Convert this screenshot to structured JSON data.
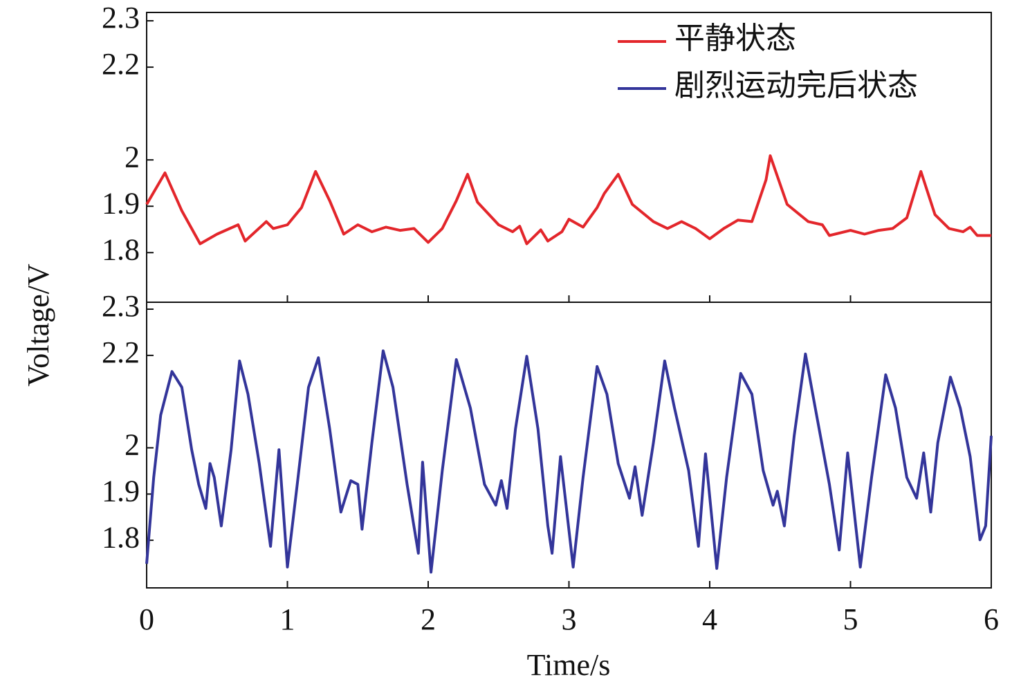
{
  "chart_data": [
    {
      "type": "line",
      "ylabel": "Voltage/V",
      "xlim": [
        0,
        6
      ],
      "xticks": [
        1,
        2,
        3,
        4,
        5
      ],
      "ylim": [
        1.693,
        2.318
      ],
      "yticks": [
        1.8,
        1.9,
        2.0,
        2.2,
        2.3
      ],
      "legend": "upper right",
      "x": [
        0,
        0.13,
        0.25,
        0.38,
        0.5,
        0.65,
        0.7,
        0.85,
        0.9,
        1.0,
        1.1,
        1.2,
        1.3,
        1.4,
        1.5,
        1.6,
        1.7,
        1.8,
        1.9,
        2.0,
        2.1,
        2.2,
        2.28,
        2.35,
        2.5,
        2.6,
        2.65,
        2.7,
        2.8,
        2.85,
        2.95,
        3.0,
        3.1,
        3.2,
        3.25,
        3.35,
        3.45,
        3.6,
        3.7,
        3.8,
        3.9,
        4.0,
        4.1,
        4.2,
        4.3,
        4.4,
        4.43,
        4.55,
        4.7,
        4.8,
        4.85,
        5.0,
        5.1,
        5.2,
        5.3,
        5.4,
        5.5,
        5.6,
        5.7,
        5.8,
        5.85,
        5.9,
        6.0
      ],
      "series": [
        {
          "name": "平静状态",
          "color": "#e3262b",
          "values": [
            1.904,
            1.972,
            1.89,
            1.819,
            1.84,
            1.86,
            1.825,
            1.867,
            1.852,
            1.86,
            1.897,
            1.975,
            1.912,
            1.84,
            1.86,
            1.845,
            1.855,
            1.848,
            1.852,
            1.822,
            1.852,
            1.912,
            1.969,
            1.909,
            1.86,
            1.845,
            1.857,
            1.819,
            1.849,
            1.825,
            1.845,
            1.872,
            1.855,
            1.897,
            1.927,
            1.969,
            1.904,
            1.867,
            1.852,
            1.867,
            1.852,
            1.83,
            1.852,
            1.87,
            1.867,
            1.957,
            2.009,
            1.904,
            1.867,
            1.86,
            1.837,
            1.848,
            1.84,
            1.848,
            1.852,
            1.875,
            1.975,
            1.882,
            1.852,
            1.845,
            1.855,
            1.837,
            1.837
          ]
        }
      ]
    },
    {
      "type": "line",
      "xlabel": "Time/s",
      "xlim": [
        0,
        6
      ],
      "xticks": [
        0,
        1,
        2,
        3,
        4,
        5,
        6
      ],
      "ylim": [
        1.697,
        2.315
      ],
      "yticks": [
        1.8,
        1.9,
        2.0,
        2.2,
        2.3
      ],
      "x": [
        0,
        0.05,
        0.1,
        0.18,
        0.25,
        0.32,
        0.37,
        0.42,
        0.45,
        0.48,
        0.53,
        0.6,
        0.66,
        0.72,
        0.8,
        0.88,
        0.94,
        1.0,
        1.07,
        1.15,
        1.22,
        1.3,
        1.38,
        1.45,
        1.5,
        1.53,
        1.6,
        1.68,
        1.75,
        1.85,
        1.93,
        1.96,
        2.02,
        2.1,
        2.2,
        2.3,
        2.4,
        2.48,
        2.52,
        2.56,
        2.62,
        2.7,
        2.78,
        2.85,
        2.88,
        2.94,
        3.03,
        3.1,
        3.2,
        3.27,
        3.35,
        3.43,
        3.47,
        3.52,
        3.6,
        3.68,
        3.75,
        3.85,
        3.92,
        3.97,
        4.05,
        4.12,
        4.22,
        4.3,
        4.38,
        4.45,
        4.48,
        4.53,
        4.6,
        4.68,
        4.75,
        4.85,
        4.92,
        4.98,
        5.07,
        5.15,
        5.25,
        5.32,
        5.4,
        5.47,
        5.52,
        5.57,
        5.62,
        5.71,
        5.78,
        5.85,
        5.92,
        5.96,
        6.0
      ],
      "series": [
        {
          "name": "剧烈运动完后状态",
          "color": "#33359a",
          "values": [
            1.749,
            1.936,
            2.071,
            2.165,
            2.131,
            1.996,
            1.921,
            1.869,
            1.966,
            1.936,
            1.831,
            1.996,
            2.188,
            2.116,
            1.966,
            1.787,
            1.996,
            1.742,
            1.921,
            2.131,
            2.195,
            2.041,
            1.861,
            1.929,
            1.921,
            1.824,
            2.011,
            2.21,
            2.131,
            1.921,
            1.772,
            1.969,
            1.731,
            1.951,
            2.191,
            2.086,
            1.921,
            1.876,
            1.929,
            1.869,
            2.041,
            2.198,
            2.041,
            1.831,
            1.772,
            1.981,
            1.742,
            1.936,
            2.176,
            2.116,
            1.966,
            1.891,
            1.959,
            1.854,
            2.011,
            2.188,
            2.086,
            1.951,
            1.787,
            1.987,
            1.739,
            1.936,
            2.161,
            2.116,
            1.951,
            1.876,
            1.906,
            1.831,
            2.026,
            2.203,
            2.086,
            1.921,
            1.779,
            1.989,
            1.742,
            1.936,
            2.158,
            2.086,
            1.936,
            1.891,
            1.989,
            1.861,
            2.011,
            2.153,
            2.086,
            1.981,
            1.801,
            1.831,
            2.026
          ]
        }
      ]
    }
  ]
}
